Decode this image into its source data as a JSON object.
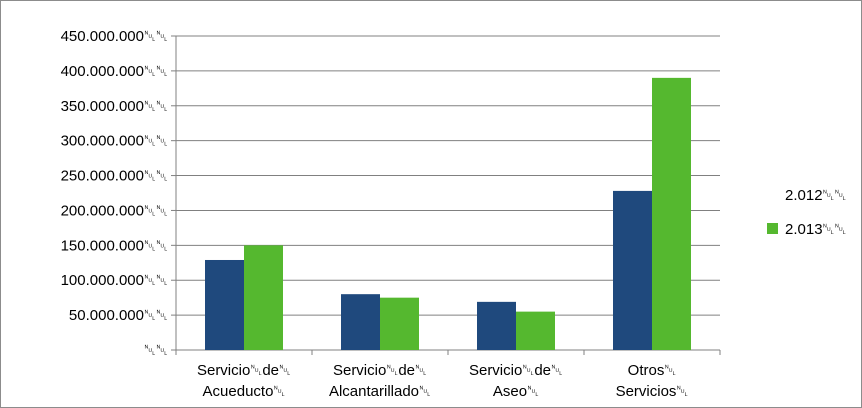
{
  "chart_data": {
    "type": "bar",
    "title": "",
    "xlabel": "",
    "ylabel": "",
    "categories": [
      [
        "Servicio␀de␀",
        "Acueducto␀"
      ],
      [
        "Servicio␀de␀",
        "Alcantarillado␀"
      ],
      [
        "Servicio␀de␀",
        "Aseo␀"
      ],
      [
        "Otros␀",
        "Servicios␀"
      ]
    ],
    "series": [
      {
        "name": "2.012␀␀",
        "color": "#1f497d",
        "values": [
          129000000,
          80000000,
          69000000,
          228000000
        ]
      },
      {
        "name": "2.013␀␀",
        "color": "#55b82f",
        "values": [
          150000000,
          75000000,
          55000000,
          390000000
        ]
      }
    ],
    "ylim": [
      0,
      450000000
    ],
    "yticks": [
      0,
      50000000,
      100000000,
      150000000,
      200000000,
      250000000,
      300000000,
      350000000,
      400000000,
      450000000
    ],
    "ytick_labels": [
      "␀␀",
      "50.000.000␀␀",
      "100.000.000␀␀",
      "150.000.000␀␀",
      "200.000.000␀␀",
      "250.000.000␀␀",
      "300.000.000␀␀",
      "350.000.000␀␀",
      "400.000.000␀␀",
      "450.000.000␀␀"
    ],
    "grid": true,
    "legend_position": "right",
    "colors": {
      "gridline": "#808080",
      "axis": "#808080"
    }
  }
}
